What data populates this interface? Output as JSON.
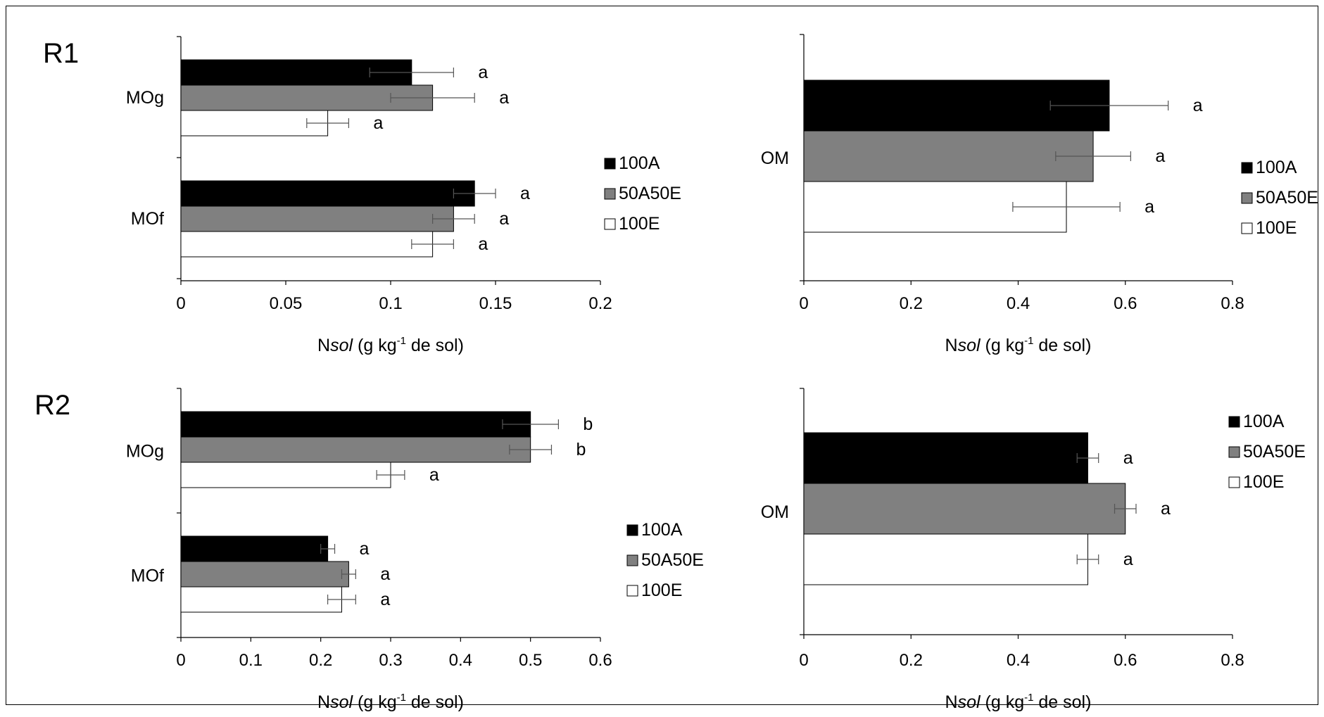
{
  "chart_data": [
    {
      "type": "bar",
      "orientation": "horizontal",
      "row_label": "R1",
      "categories": [
        "MOg",
        "MOf"
      ],
      "series": [
        {
          "name": "100A",
          "color": "#000000",
          "values": [
            0.11,
            0.14
          ],
          "errors": [
            0.02,
            0.01
          ],
          "letters": [
            "a",
            "a"
          ]
        },
        {
          "name": "50A50E",
          "color": "#808080",
          "values": [
            0.12,
            0.13
          ],
          "errors": [
            0.02,
            0.01
          ],
          "letters": [
            "a",
            "a"
          ]
        },
        {
          "name": "100E",
          "color": "#ffffff",
          "values": [
            0.07,
            0.12
          ],
          "errors": [
            0.01,
            0.01
          ],
          "letters": [
            "a",
            "a"
          ]
        }
      ],
      "xlim": [
        0,
        0.2
      ],
      "xticks": [
        "0",
        "0.05",
        "0.1",
        "0.15",
        "0.2"
      ],
      "xlabel": {
        "prefix": "N",
        "italic": "sol",
        "mid": " (g kg",
        "sup": "-1",
        "suffix": " de sol)"
      },
      "legend": [
        "100A",
        "50A50E",
        "100E"
      ],
      "grid": false
    },
    {
      "type": "bar",
      "orientation": "horizontal",
      "categories": [
        "OM"
      ],
      "series": [
        {
          "name": "100A",
          "color": "#000000",
          "values": [
            0.57
          ],
          "errors": [
            0.11
          ],
          "letters": [
            "a"
          ]
        },
        {
          "name": "50A50E",
          "color": "#808080",
          "values": [
            0.54
          ],
          "errors": [
            0.07
          ],
          "letters": [
            "a"
          ]
        },
        {
          "name": "100E",
          "color": "#ffffff",
          "values": [
            0.49
          ],
          "errors": [
            0.1
          ],
          "letters": [
            "a"
          ]
        }
      ],
      "xlim": [
        0,
        0.8
      ],
      "xticks": [
        "0",
        "0.2",
        "0.4",
        "0.6",
        "0.8"
      ],
      "xlabel": {
        "prefix": "N",
        "italic": "sol",
        "mid": " (g kg",
        "sup": "-1",
        "suffix": " de sol)"
      },
      "legend": [
        "100A",
        "50A50E",
        "100E"
      ],
      "grid": false
    },
    {
      "type": "bar",
      "orientation": "horizontal",
      "row_label": "R2",
      "categories": [
        "MOg",
        "MOf"
      ],
      "series": [
        {
          "name": "100A",
          "color": "#000000",
          "values": [
            0.5,
            0.21
          ],
          "errors": [
            0.04,
            0.01
          ],
          "letters": [
            "b",
            "a"
          ]
        },
        {
          "name": "50A50E",
          "color": "#808080",
          "values": [
            0.5,
            0.24
          ],
          "errors": [
            0.03,
            0.01
          ],
          "letters": [
            "b",
            "a"
          ]
        },
        {
          "name": "100E",
          "color": "#ffffff",
          "values": [
            0.3,
            0.23
          ],
          "errors": [
            0.02,
            0.02
          ],
          "letters": [
            "a",
            "a"
          ]
        }
      ],
      "xlim": [
        0,
        0.6
      ],
      "xticks": [
        "0",
        "0.1",
        "0.2",
        "0.3",
        "0.4",
        "0.5",
        "0.6"
      ],
      "xlabel": {
        "prefix": "N",
        "italic": "sol",
        "mid": " (g kg",
        "sup": "-1",
        "suffix": " de sol)"
      },
      "legend": [
        "100A",
        "50A50E",
        "100E"
      ],
      "grid": false
    },
    {
      "type": "bar",
      "orientation": "horizontal",
      "categories": [
        "OM"
      ],
      "series": [
        {
          "name": "100A",
          "color": "#000000",
          "values": [
            0.53
          ],
          "errors": [
            0.02
          ],
          "letters": [
            "a"
          ]
        },
        {
          "name": "50A50E",
          "color": "#808080",
          "values": [
            0.6
          ],
          "errors": [
            0.02
          ],
          "letters": [
            "a"
          ]
        },
        {
          "name": "100E",
          "color": "#ffffff",
          "values": [
            0.53
          ],
          "errors": [
            0.02
          ],
          "letters": [
            "a"
          ]
        }
      ],
      "xlim": [
        0,
        0.8
      ],
      "xticks": [
        "0",
        "0.2",
        "0.4",
        "0.6",
        "0.8"
      ],
      "xlabel": {
        "prefix": "N",
        "italic": "sol",
        "mid": " (g kg",
        "sup": "-1",
        "suffix": " de sol)"
      },
      "legend": [
        "100A",
        "50A50E",
        "100E"
      ],
      "grid": false
    }
  ]
}
